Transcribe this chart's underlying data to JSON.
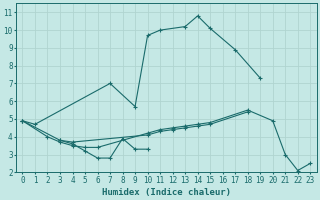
{
  "xlabel": "Humidex (Indice chaleur)",
  "xlim": [
    -0.5,
    23.5
  ],
  "ylim": [
    2,
    11.5
  ],
  "yticks": [
    2,
    3,
    4,
    5,
    6,
    7,
    8,
    9,
    10,
    11
  ],
  "xticks": [
    0,
    1,
    2,
    3,
    4,
    5,
    6,
    7,
    8,
    9,
    10,
    11,
    12,
    13,
    14,
    15,
    16,
    17,
    18,
    19,
    20,
    21,
    22,
    23
  ],
  "bg_color": "#c5e8e5",
  "grid_color": "#b0d4d0",
  "line_color": "#1a6b6b",
  "line1_x": [
    0,
    1,
    7,
    9,
    10,
    11,
    13,
    14,
    15,
    17,
    19
  ],
  "line1_y": [
    4.9,
    4.7,
    7.0,
    5.7,
    9.7,
    10.0,
    10.2,
    10.8,
    10.1,
    8.9,
    7.3
  ],
  "line2_x": [
    3,
    4,
    5,
    6,
    7,
    8,
    9,
    10
  ],
  "line2_y": [
    3.8,
    3.6,
    3.2,
    2.8,
    2.8,
    3.9,
    3.3,
    3.3
  ],
  "line3_x": [
    0,
    2,
    3,
    4,
    5,
    6,
    10,
    11,
    12,
    13,
    14,
    15,
    18,
    20,
    21,
    22,
    23
  ],
  "line3_y": [
    4.9,
    4.0,
    3.7,
    3.5,
    3.4,
    3.4,
    4.2,
    4.4,
    4.5,
    4.6,
    4.7,
    4.8,
    5.5,
    4.9,
    3.0,
    2.1,
    2.5
  ],
  "line4_x": [
    0,
    3,
    4,
    10,
    11,
    12,
    13,
    14,
    15,
    18
  ],
  "line4_y": [
    4.9,
    3.8,
    3.7,
    4.1,
    4.3,
    4.4,
    4.5,
    4.6,
    4.7,
    5.4
  ]
}
